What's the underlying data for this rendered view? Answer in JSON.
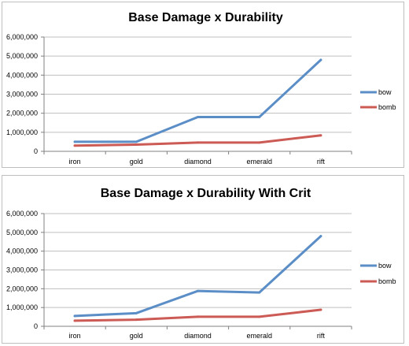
{
  "chart_data": [
    {
      "type": "line",
      "title": "Base Damage x Durability",
      "xlabel": "",
      "ylabel": "",
      "categories": [
        "iron",
        "gold",
        "diamond",
        "emerald",
        "rift"
      ],
      "yticks": [
        "0",
        "1,000,000",
        "2,000,000",
        "3,000,000",
        "4,000,000",
        "5,000,000",
        "6,000,000"
      ],
      "ylim": [
        0,
        6000000
      ],
      "grid": true,
      "legend": "right",
      "series": [
        {
          "name": "bow",
          "color": "#5b8ec6",
          "values": [
            500000,
            500000,
            1800000,
            1800000,
            4800000
          ]
        },
        {
          "name": "bomb",
          "color": "#cc5a55",
          "values": [
            300000,
            350000,
            460000,
            460000,
            840000
          ]
        }
      ]
    },
    {
      "type": "line",
      "title": "Base Damage x Durability With Crit",
      "xlabel": "",
      "ylabel": "",
      "categories": [
        "iron",
        "gold",
        "diamond",
        "emerald",
        "rift"
      ],
      "yticks": [
        "0",
        "1,000,000",
        "2,000,000",
        "3,000,000",
        "4,000,000",
        "5,000,000",
        "6,000,000"
      ],
      "ylim": [
        0,
        6000000
      ],
      "grid": true,
      "legend": "right",
      "series": [
        {
          "name": "bow",
          "color": "#5b8ec6",
          "values": [
            550000,
            700000,
            1880000,
            1800000,
            4800000
          ]
        },
        {
          "name": "bomb",
          "color": "#cc5a55",
          "values": [
            300000,
            350000,
            510000,
            510000,
            880000
          ]
        }
      ]
    }
  ]
}
